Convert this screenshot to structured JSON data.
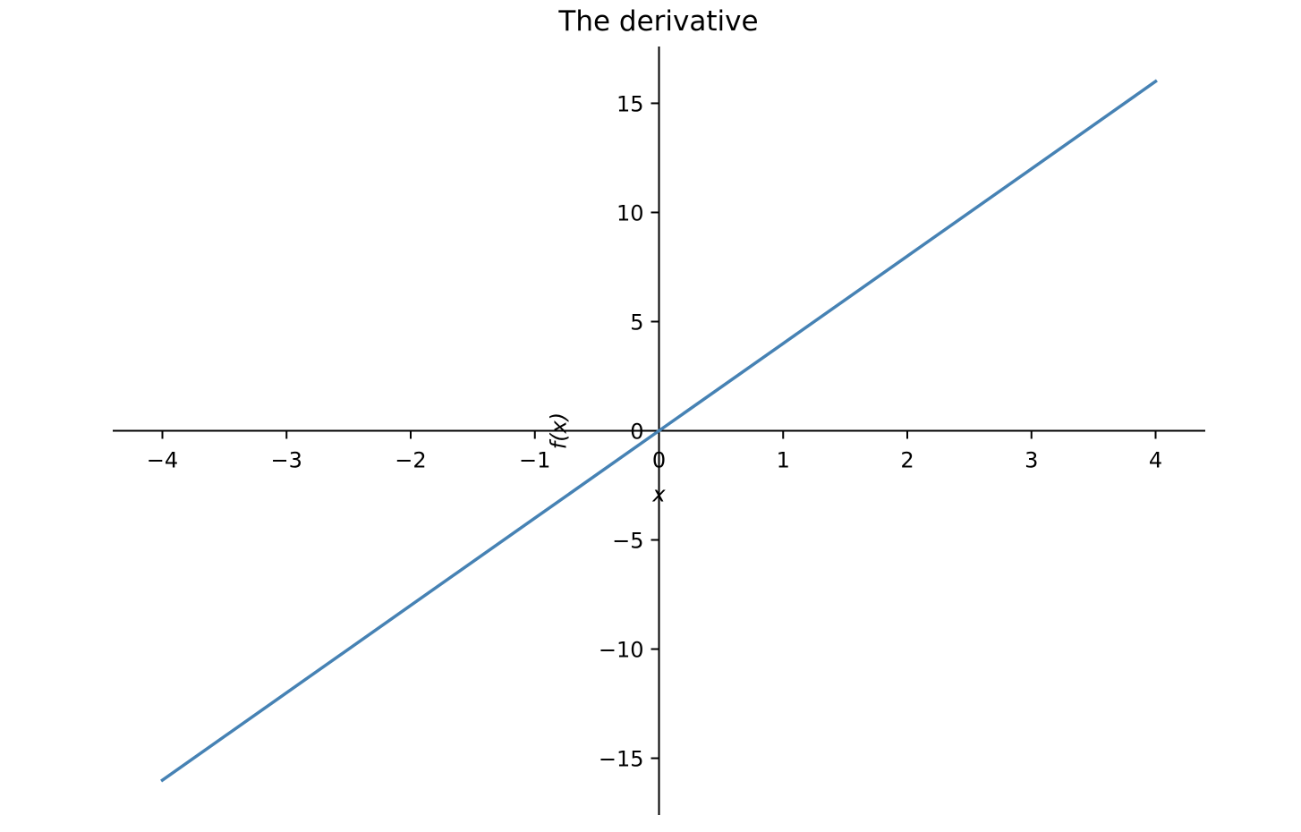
{
  "colors": {
    "background": "#ffffff",
    "axis": "#000000",
    "series": "#4682b4"
  },
  "chart_data": {
    "type": "line",
    "title": "The derivative",
    "xlabel": "x",
    "ylabel": "f(x)",
    "xlim": [
      -4.4,
      4.4
    ],
    "ylim": [
      -17.6,
      17.6
    ],
    "xticks": [
      -4,
      -3,
      -2,
      -1,
      0,
      1,
      2,
      3,
      4
    ],
    "xtick_labels": [
      "−4",
      "−3",
      "−2",
      "−1",
      "0",
      "1",
      "2",
      "3",
      "4"
    ],
    "yticks": [
      -15,
      -10,
      -5,
      0,
      5,
      10,
      15
    ],
    "ytick_labels": [
      "−15",
      "−10",
      "−5",
      "0",
      "5",
      "10",
      "15"
    ],
    "grid": false,
    "axes_through_origin": true,
    "series": [
      {
        "x": [
          -4,
          -3,
          -2,
          -1,
          0,
          1,
          2,
          3,
          4
        ],
        "y": [
          -16,
          -12,
          -8,
          -4,
          0,
          4,
          8,
          12,
          16
        ]
      }
    ]
  }
}
